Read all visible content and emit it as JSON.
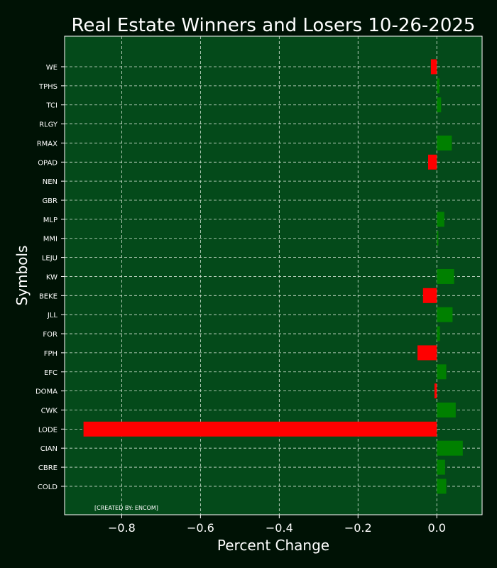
{
  "chart_data": {
    "type": "bar",
    "orientation": "horizontal",
    "title": "Real Estate Winners and Losers 10-26-2025",
    "xlabel": "Percent Change",
    "ylabel": "Symbols",
    "xlim": [
      -0.945,
      0.115
    ],
    "xticks": [
      -0.8,
      -0.6,
      -0.4,
      -0.2,
      0.0
    ],
    "xtick_labels": [
      "−0.8",
      "−0.6",
      "−0.4",
      "−0.2",
      "0.0"
    ],
    "grid": true,
    "annotation": "[CREATED BY: ENCOM]",
    "colors": {
      "background": "#001205",
      "plot_background": "#044a1a",
      "positive": "#008000",
      "negative": "#ff0000",
      "grid": "#d8e6d8",
      "text": "#ffffff"
    },
    "categories": [
      "WE",
      "TPHS",
      "TCI",
      "RLGY",
      "RMAX",
      "OPAD",
      "NEN",
      "GBR",
      "MLP",
      "MMI",
      "LEJU",
      "KW",
      "BEKE",
      "JLL",
      "FOR",
      "FPH",
      "EFC",
      "DOMA",
      "CWK",
      "LODE",
      "CIAN",
      "CBRE",
      "COLD"
    ],
    "values": [
      -0.015,
      0.007,
      0.011,
      0.0,
      0.038,
      -0.022,
      0.0,
      0.0,
      0.019,
      0.004,
      0.0,
      0.044,
      -0.035,
      0.04,
      0.008,
      -0.049,
      0.024,
      -0.006,
      0.048,
      -0.897,
      0.066,
      0.021,
      0.024
    ]
  }
}
